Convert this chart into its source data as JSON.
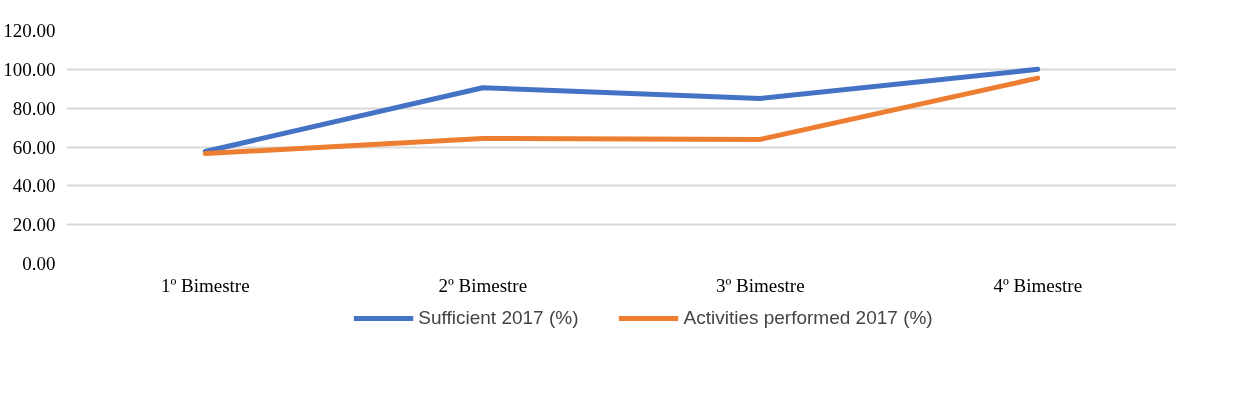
{
  "chart_data": {
    "type": "line",
    "categories": [
      "1º Bimestre",
      "2º Bimestre",
      "3º Bimestre",
      "4º Bimestre"
    ],
    "series": [
      {
        "name": "Sufficient 2017 (%)",
        "color": "#4472c4",
        "values": [
          57.7,
          90.5,
          85.0,
          100.0
        ]
      },
      {
        "name": "Activities performed 2017 (%)",
        "color": "#ed7d31",
        "values": [
          56.6,
          64.4,
          63.9,
          95.5
        ]
      }
    ],
    "ylim": [
      0,
      120
    ],
    "yticks": [
      {
        "value": 0,
        "label": "0.00"
      },
      {
        "value": 20,
        "label": "20.00"
      },
      {
        "value": 40,
        "label": "40.00"
      },
      {
        "value": 60,
        "label": "60.00"
      },
      {
        "value": 80,
        "label": "80.00"
      },
      {
        "value": 100,
        "label": "100.00"
      },
      {
        "value": 120,
        "label": "120.00"
      }
    ],
    "grid": "y",
    "legend": "bottom",
    "marker": "none",
    "line_style": "solid"
  }
}
